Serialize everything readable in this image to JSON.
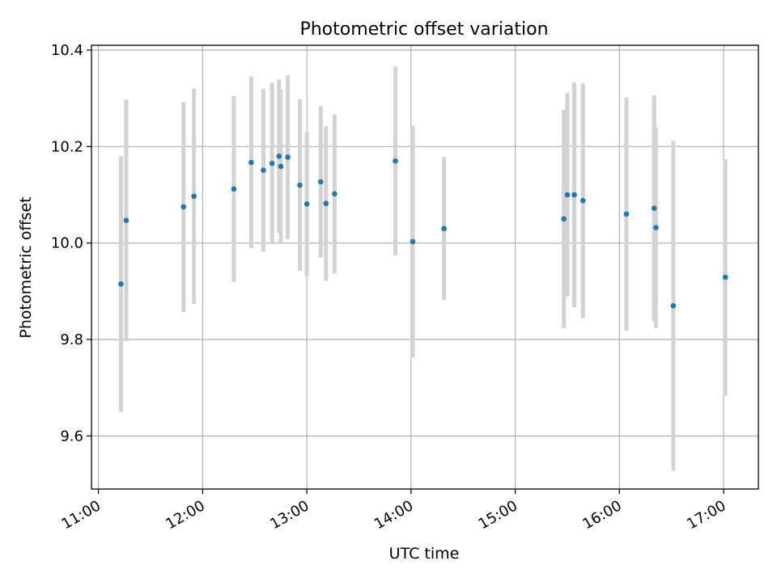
{
  "chart_data": {
    "type": "scatter",
    "title": "Photometric offset variation",
    "xlabel": "UTC time",
    "ylabel": "Photometric offset",
    "xlim": [
      "10:56",
      "17:20"
    ],
    "ylim": [
      9.49,
      10.41
    ],
    "x_ticks": [
      "11:00",
      "12:00",
      "13:00",
      "14:00",
      "15:00",
      "16:00",
      "17:00"
    ],
    "y_ticks": [
      "9.6",
      "9.8",
      "10.0",
      "10.2",
      "10.4"
    ],
    "grid": true,
    "marker_color": "#1f77b4",
    "errorbar_color": "#d3d3d3",
    "series": [
      {
        "points": [
          {
            "x": "11:13",
            "y": 9.915,
            "yerr": 0.265
          },
          {
            "x": "11:16",
            "y": 10.047,
            "yerr": 0.25
          },
          {
            "x": "11:49",
            "y": 10.075,
            "yerr": 0.218
          },
          {
            "x": "11:55",
            "y": 10.097,
            "yerr": 0.223
          },
          {
            "x": "12:18",
            "y": 10.112,
            "yerr": 0.193
          },
          {
            "x": "12:28",
            "y": 10.167,
            "yerr": 0.178
          },
          {
            "x": "12:35",
            "y": 10.151,
            "yerr": 0.169
          },
          {
            "x": "12:40",
            "y": 10.165,
            "yerr": 0.167
          },
          {
            "x": "12:44",
            "y": 10.18,
            "yerr": 0.159
          },
          {
            "x": "12:45",
            "y": 10.159,
            "yerr": 0.159
          },
          {
            "x": "12:49",
            "y": 10.178,
            "yerr": 0.17
          },
          {
            "x": "12:56",
            "y": 10.12,
            "yerr": 0.178
          },
          {
            "x": "13:00",
            "y": 10.081,
            "yerr": 0.149
          },
          {
            "x": "13:08",
            "y": 10.127,
            "yerr": 0.157
          },
          {
            "x": "13:11",
            "y": 10.082,
            "yerr": 0.16
          },
          {
            "x": "13:16",
            "y": 10.102,
            "yerr": 0.165
          },
          {
            "x": "13:51",
            "y": 10.17,
            "yerr": 0.196
          },
          {
            "x": "14:01",
            "y": 10.003,
            "yerr": 0.24
          },
          {
            "x": "14:19",
            "y": 10.03,
            "yerr": 0.148
          },
          {
            "x": "15:28",
            "y": 10.05,
            "yerr": 0.226
          },
          {
            "x": "15:30",
            "y": 10.1,
            "yerr": 0.211
          },
          {
            "x": "15:34",
            "y": 10.1,
            "yerr": 0.233
          },
          {
            "x": "15:39",
            "y": 10.088,
            "yerr": 0.243
          },
          {
            "x": "16:04",
            "y": 10.06,
            "yerr": 0.242
          },
          {
            "x": "16:20",
            "y": 10.072,
            "yerr": 0.234
          },
          {
            "x": "16:21",
            "y": 10.032,
            "yerr": 0.208
          },
          {
            "x": "16:31",
            "y": 9.87,
            "yerr": 0.342
          },
          {
            "x": "17:01",
            "y": 9.929,
            "yerr": 0.245
          }
        ]
      }
    ]
  }
}
